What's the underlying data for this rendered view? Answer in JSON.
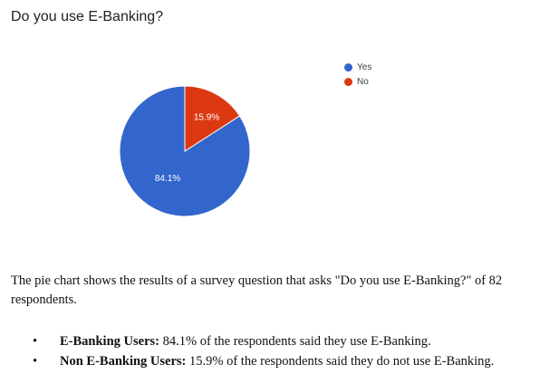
{
  "question": "Do you use E-Banking?",
  "chart_data": {
    "type": "pie",
    "title": "Do you use E-Banking?",
    "categories": [
      "Yes",
      "No"
    ],
    "values": [
      84.1,
      15.9
    ],
    "labels": [
      "84.1%",
      "15.9%"
    ],
    "colors": [
      "#3366cc",
      "#dc3912"
    ],
    "legend_position": "right"
  },
  "description": "The pie chart shows the results of a survey question that asks \"Do you use E-Banking?\" of 82 respondents.",
  "bullets": [
    {
      "glyph": "•",
      "label": "E-Banking Users:",
      "text": " 84.1% of the respondents said they use E-Banking."
    },
    {
      "glyph": "•",
      "label": "Non E-Banking Users:",
      "text": " 15.9% of the respondents said they do not use E-Banking."
    }
  ]
}
